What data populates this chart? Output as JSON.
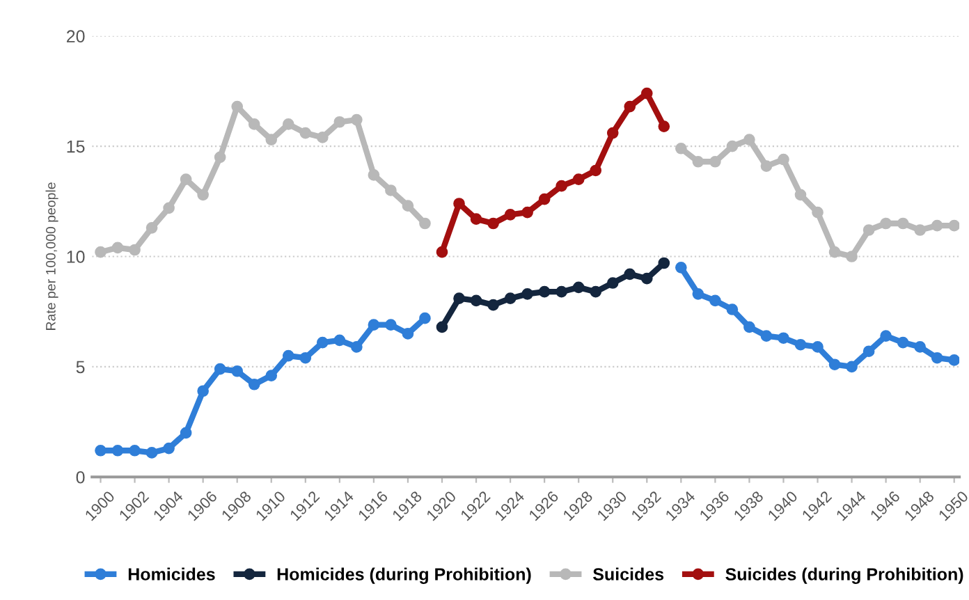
{
  "chart_data": {
    "type": "line",
    "ylabel": "Rate per 100,000 people",
    "xlim": [
      1899.5,
      1950.3
    ],
    "xticks": [
      1900,
      1902,
      1904,
      1906,
      1908,
      1910,
      1912,
      1914,
      1916,
      1918,
      1920,
      1922,
      1924,
      1926,
      1928,
      1930,
      1932,
      1934,
      1936,
      1938,
      1940,
      1942,
      1944,
      1946,
      1948,
      1950
    ],
    "ylim": [
      0,
      20
    ],
    "yticks": [
      0,
      5,
      10,
      15,
      20
    ],
    "grid": "y",
    "legend": "bottom",
    "marker": "circle",
    "line_style": "solid",
    "series": [
      {
        "name": "Homicides",
        "color": "#2f7ed8",
        "x": [
          1900,
          1901,
          1902,
          1903,
          1904,
          1905,
          1906,
          1907,
          1908,
          1909,
          1910,
          1911,
          1912,
          1913,
          1914,
          1915,
          1916,
          1917,
          1918,
          1919
        ],
        "values": [
          1.2,
          1.2,
          1.2,
          1.1,
          1.3,
          2.0,
          3.9,
          4.9,
          4.8,
          4.2,
          4.6,
          5.5,
          5.4,
          6.1,
          6.2,
          5.9,
          6.9,
          6.9,
          6.5,
          7.2
        ]
      },
      {
        "color": "#2f7ed8",
        "x": [
          1934,
          1935,
          1936,
          1937,
          1938,
          1939,
          1940,
          1941,
          1942,
          1943,
          1944,
          1945,
          1946,
          1947,
          1948,
          1949,
          1950
        ],
        "values": [
          9.5,
          8.3,
          8.0,
          7.6,
          6.8,
          6.4,
          6.3,
          6.0,
          5.9,
          5.1,
          5.0,
          5.7,
          6.4,
          6.1,
          5.9,
          5.4,
          5.3
        ]
      },
      {
        "name": "Homicides (during Prohibition)",
        "color": "#14263e",
        "x": [
          1920,
          1921,
          1922,
          1923,
          1924,
          1925,
          1926,
          1927,
          1928,
          1929,
          1930,
          1931,
          1932,
          1933
        ],
        "values": [
          6.8,
          8.1,
          8.0,
          7.8,
          8.1,
          8.3,
          8.4,
          8.4,
          8.6,
          8.4,
          8.8,
          9.2,
          9.0,
          9.7
        ]
      },
      {
        "name": "Suicides",
        "color": "#b8b8b8",
        "x": [
          1900,
          1901,
          1902,
          1903,
          1904,
          1905,
          1906,
          1907,
          1908,
          1909,
          1910,
          1911,
          1912,
          1913,
          1914,
          1915,
          1916,
          1917,
          1918,
          1919
        ],
        "values": [
          10.2,
          10.4,
          10.3,
          11.3,
          12.2,
          13.5,
          12.8,
          14.5,
          16.8,
          16.0,
          15.3,
          16.0,
          15.6,
          15.4,
          16.1,
          16.2,
          13.7,
          13.0,
          12.3,
          11.5
        ]
      },
      {
        "color": "#b8b8b8",
        "x": [
          1934,
          1935,
          1936,
          1937,
          1938,
          1939,
          1940,
          1941,
          1942,
          1943,
          1944,
          1945,
          1946,
          1947,
          1948,
          1949,
          1950
        ],
        "values": [
          14.9,
          14.3,
          14.3,
          15.0,
          15.3,
          14.1,
          14.4,
          12.8,
          12.0,
          10.2,
          10.0,
          11.2,
          11.5,
          11.5,
          11.2,
          11.4,
          11.4
        ]
      },
      {
        "name": "Suicides (during Prohibition)",
        "color": "#a30f0f",
        "x": [
          1920,
          1921,
          1922,
          1923,
          1924,
          1925,
          1926,
          1927,
          1928,
          1929,
          1930,
          1931,
          1932,
          1933
        ],
        "values": [
          10.2,
          12.4,
          11.7,
          11.5,
          11.9,
          12.0,
          12.6,
          13.2,
          13.5,
          13.9,
          15.6,
          16.8,
          17.4,
          15.9
        ]
      }
    ]
  }
}
